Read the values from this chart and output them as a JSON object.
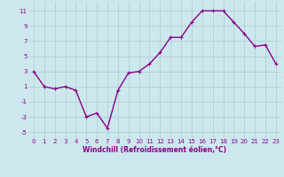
{
  "x": [
    0,
    1,
    2,
    3,
    4,
    5,
    6,
    7,
    8,
    9,
    10,
    11,
    12,
    13,
    14,
    15,
    16,
    17,
    18,
    19,
    20,
    21,
    22,
    23
  ],
  "y": [
    3,
    1,
    0.7,
    1,
    0.5,
    -3,
    -2.5,
    -4.5,
    0.5,
    2.8,
    3,
    4,
    5.5,
    7.5,
    7.5,
    9.5,
    11,
    11,
    11,
    9.5,
    8,
    6.3,
    6.5,
    4
  ],
  "line_color": "#880088",
  "marker": "+",
  "bg_color": "#cce8ee",
  "grid_color": "#aacccc",
  "xlabel": "Windchill (Refroidissement éolien,°C)",
  "ylabel_ticks": [
    -5,
    -3,
    -1,
    1,
    3,
    5,
    7,
    9,
    11
  ],
  "xlim": [
    -0.5,
    23.5
  ],
  "ylim": [
    -5.8,
    12.2
  ],
  "xlabel_fontsize": 5.5,
  "tick_fontsize": 5,
  "linewidth": 1.0,
  "markersize": 3
}
